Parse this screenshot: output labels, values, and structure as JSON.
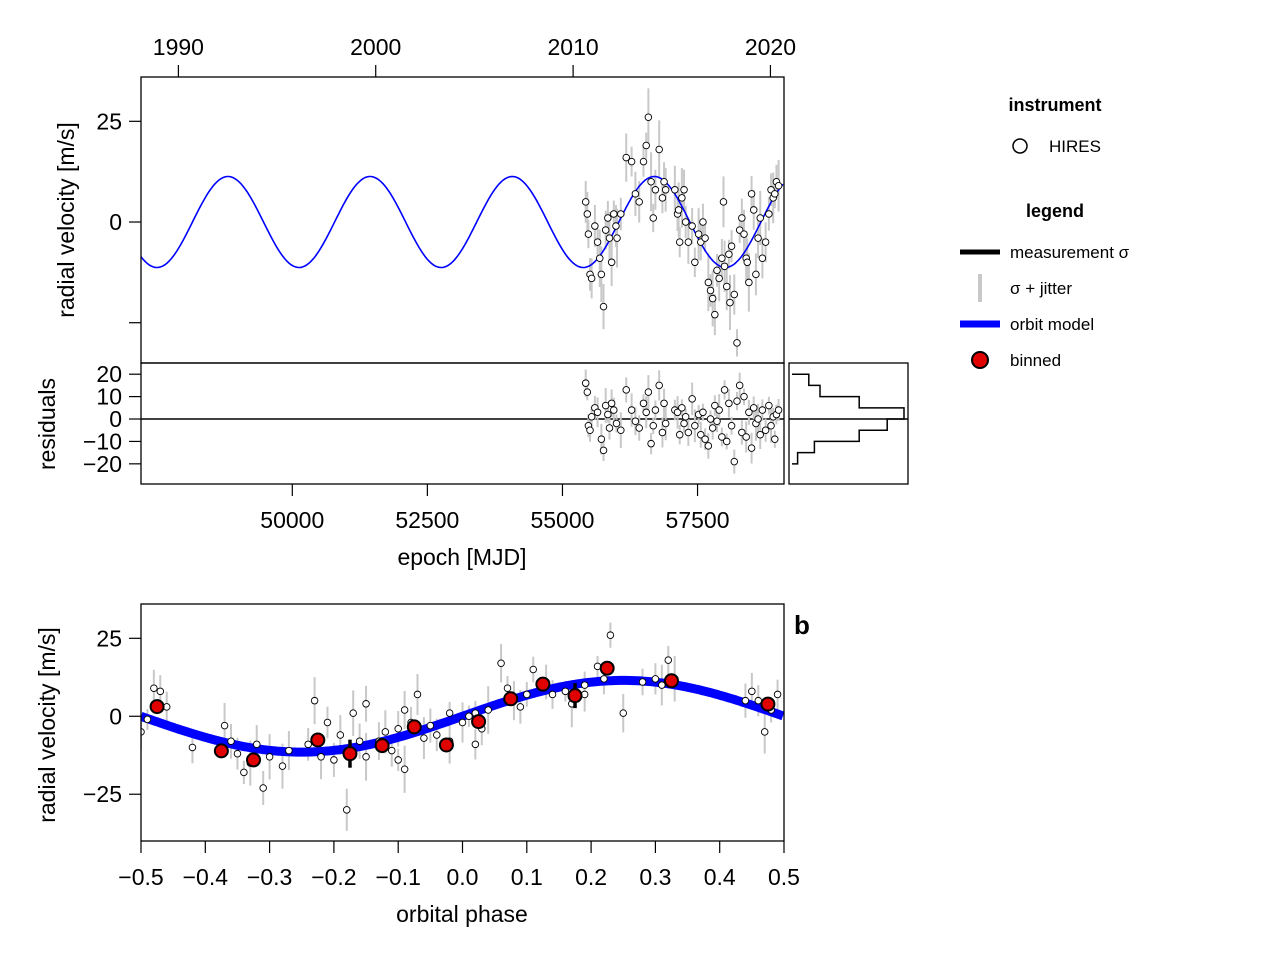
{
  "chart_data": [
    {
      "type": "scatter",
      "name": "rv-vs-epoch",
      "xlabel": "epoch [MJD]",
      "ylabel": "radial velocity [m/s]",
      "xlim": [
        47200,
        59100
      ],
      "ylim": [
        -35,
        36
      ],
      "x_ticks": [
        50000,
        52500,
        55000,
        57500
      ],
      "x_tick_labels": [
        "50000",
        "52500",
        "55000",
        "57500"
      ],
      "y_ticks": [
        25,
        0,
        -25
      ],
      "y_tick_labels": [
        "25",
        "0",
        ""
      ],
      "top_axis": {
        "ticks_mjd": [
          47892,
          51544,
          55197,
          58849
        ],
        "labels": [
          "1990",
          "2000",
          "2010",
          "2020"
        ]
      },
      "model": {
        "amplitude": 11.3,
        "period_days": 2630,
        "peak_mjd": 56700,
        "color": "#0000ff"
      },
      "series": [
        {
          "name": "HIRES",
          "points": [
            [
              55430,
              5
            ],
            [
              55460,
              2
            ],
            [
              55480,
              -3
            ],
            [
              55510,
              -13
            ],
            [
              55540,
              -14
            ],
            [
              55600,
              -1
            ],
            [
              55650,
              -5
            ],
            [
              55720,
              -13
            ],
            [
              55760,
              -21
            ],
            [
              55800,
              -2
            ],
            [
              55840,
              1
            ],
            [
              55870,
              -4
            ],
            [
              55910,
              -10
            ],
            [
              55950,
              2
            ],
            [
              55990,
              -1
            ],
            [
              56080,
              2
            ],
            [
              56180,
              16
            ],
            [
              56280,
              15
            ],
            [
              56350,
              7
            ],
            [
              56420,
              5
            ],
            [
              56500,
              15
            ],
            [
              56550,
              19
            ],
            [
              56590,
              26
            ],
            [
              56640,
              10
            ],
            [
              56680,
              1
            ],
            [
              56720,
              8
            ],
            [
              56790,
              18
            ],
            [
              56850,
              6
            ],
            [
              56880,
              10
            ],
            [
              56910,
              8
            ],
            [
              57080,
              8
            ],
            [
              57130,
              2
            ],
            [
              57170,
              -5
            ],
            [
              57210,
              6
            ],
            [
              57250,
              8
            ],
            [
              57280,
              0
            ],
            [
              57330,
              -5
            ],
            [
              57400,
              -1
            ],
            [
              57450,
              -10
            ],
            [
              57520,
              -3
            ],
            [
              57560,
              -5
            ],
            [
              57600,
              0
            ],
            [
              57640,
              -4
            ],
            [
              57700,
              -15
            ],
            [
              57740,
              -17
            ],
            [
              57780,
              -19
            ],
            [
              57820,
              -23
            ],
            [
              57860,
              -12
            ],
            [
              57900,
              -14
            ],
            [
              57950,
              -9
            ],
            [
              58000,
              -11
            ],
            [
              58040,
              -16
            ],
            [
              58080,
              -8
            ],
            [
              58130,
              -6
            ],
            [
              58180,
              -18
            ],
            [
              58230,
              -30
            ],
            [
              58280,
              -2
            ],
            [
              58320,
              1
            ],
            [
              58360,
              -3
            ],
            [
              58400,
              -9
            ],
            [
              58450,
              -15
            ],
            [
              58500,
              7
            ],
            [
              58540,
              3
            ],
            [
              58580,
              -13
            ],
            [
              58620,
              -4
            ],
            [
              58660,
              1
            ],
            [
              58700,
              -9
            ],
            [
              58760,
              -5
            ],
            [
              58820,
              2
            ],
            [
              58860,
              8
            ],
            [
              58900,
              6
            ],
            [
              58930,
              7
            ],
            [
              58960,
              10
            ],
            [
              59000,
              9
            ],
            [
              57150,
              3
            ],
            [
              56010,
              -4
            ],
            [
              55690,
              -9
            ],
            [
              58100,
              -20
            ],
            [
              57980,
              5
            ],
            [
              58420,
              -10
            ]
          ]
        }
      ]
    },
    {
      "type": "scatter",
      "name": "residuals",
      "ylabel": "residuals",
      "xlim": [
        47200,
        59100
      ],
      "ylim": [
        -29,
        25
      ],
      "y_ticks": [
        20,
        10,
        0,
        -10,
        -20
      ],
      "y_tick_labels": [
        "20",
        "10",
        "0",
        "−10",
        "−20"
      ],
      "points": [
        [
          55430,
          16
        ],
        [
          55460,
          12
        ],
        [
          55480,
          -3
        ],
        [
          55510,
          -5
        ],
        [
          55540,
          1
        ],
        [
          55600,
          5
        ],
        [
          55650,
          3
        ],
        [
          55720,
          -9
        ],
        [
          55760,
          -14
        ],
        [
          55800,
          6
        ],
        [
          55840,
          2
        ],
        [
          55870,
          -4
        ],
        [
          55910,
          7
        ],
        [
          55950,
          4
        ],
        [
          56000,
          -2
        ],
        [
          56080,
          -5
        ],
        [
          56180,
          13
        ],
        [
          56280,
          4
        ],
        [
          56350,
          -1
        ],
        [
          56420,
          -4
        ],
        [
          56500,
          7
        ],
        [
          56550,
          3
        ],
        [
          56590,
          12
        ],
        [
          56640,
          -11
        ],
        [
          56680,
          -3
        ],
        [
          56720,
          4
        ],
        [
          56790,
          15
        ],
        [
          56850,
          -6
        ],
        [
          56880,
          7
        ],
        [
          56910,
          -2
        ],
        [
          57080,
          4
        ],
        [
          57130,
          3
        ],
        [
          57170,
          -7
        ],
        [
          57210,
          5
        ],
        [
          57250,
          -2
        ],
        [
          57280,
          1
        ],
        [
          57330,
          -6
        ],
        [
          57400,
          9
        ],
        [
          57450,
          -3
        ],
        [
          57520,
          2
        ],
        [
          57560,
          -7
        ],
        [
          57600,
          3
        ],
        [
          57640,
          -9
        ],
        [
          57700,
          -12
        ],
        [
          57740,
          0
        ],
        [
          57780,
          -4
        ],
        [
          57820,
          6
        ],
        [
          57860,
          -1
        ],
        [
          57900,
          4
        ],
        [
          57950,
          -8
        ],
        [
          58000,
          13
        ],
        [
          58040,
          -10
        ],
        [
          58080,
          7
        ],
        [
          58130,
          -3
        ],
        [
          58180,
          -19
        ],
        [
          58230,
          8
        ],
        [
          58280,
          15
        ],
        [
          58320,
          -6
        ],
        [
          58360,
          10
        ],
        [
          58400,
          -8
        ],
        [
          58450,
          3
        ],
        [
          58500,
          -13
        ],
        [
          58540,
          5
        ],
        [
          58580,
          -2
        ],
        [
          58620,
          0
        ],
        [
          58660,
          -7
        ],
        [
          58700,
          4
        ],
        [
          58760,
          -5
        ],
        [
          58820,
          6
        ],
        [
          58860,
          -3
        ],
        [
          58900,
          1
        ],
        [
          58930,
          -9
        ],
        [
          58960,
          2
        ],
        [
          59000,
          4
        ]
      ]
    },
    {
      "type": "scatter",
      "name": "rv-vs-phase",
      "panel_label": "b",
      "xlabel": "orbital phase",
      "ylabel": "radial velocity [m/s]",
      "xlim": [
        -0.5,
        0.5
      ],
      "ylim": [
        -40,
        36
      ],
      "x_ticks": [
        -0.5,
        -0.4,
        -0.3,
        -0.2,
        -0.1,
        0.0,
        0.1,
        0.2,
        0.3,
        0.4,
        0.5
      ],
      "x_tick_labels": [
        "−0.5",
        "−0.4",
        "−0.3",
        "−0.2",
        "−0.1",
        "0.0",
        "0.1",
        "0.2",
        "0.3",
        "0.4",
        "0.5"
      ],
      "y_ticks": [
        25,
        0,
        -25
      ],
      "y_tick_labels": [
        "25",
        "0",
        "−25"
      ],
      "model": {
        "amplitude": 11.5,
        "peak_phase": 0.25,
        "color": "#0000ff"
      },
      "points": [
        [
          -0.49,
          -1
        ],
        [
          -0.48,
          9
        ],
        [
          -0.47,
          8
        ],
        [
          -0.46,
          3
        ],
        [
          -0.5,
          -5
        ],
        [
          -0.37,
          -3
        ],
        [
          -0.36,
          -8
        ],
        [
          -0.35,
          -12
        ],
        [
          -0.34,
          -18
        ],
        [
          -0.33,
          -15
        ],
        [
          -0.32,
          -9
        ],
        [
          -0.31,
          -23
        ],
        [
          -0.3,
          -13
        ],
        [
          -0.27,
          -11
        ],
        [
          -0.24,
          -9
        ],
        [
          -0.23,
          5
        ],
        [
          -0.22,
          -13
        ],
        [
          -0.21,
          -2
        ],
        [
          -0.2,
          -14
        ],
        [
          -0.19,
          -6
        ],
        [
          -0.18,
          -30
        ],
        [
          -0.17,
          1
        ],
        [
          -0.16,
          -8
        ],
        [
          -0.15,
          -13
        ],
        [
          -0.13,
          -8
        ],
        [
          -0.12,
          -5
        ],
        [
          -0.11,
          -11
        ],
        [
          -0.1,
          -14
        ],
        [
          -0.09,
          -17
        ],
        [
          -0.1,
          -4
        ],
        [
          -0.09,
          2
        ],
        [
          -0.08,
          -2
        ],
        [
          -0.07,
          7
        ],
        [
          -0.06,
          -7
        ],
        [
          -0.05,
          -3
        ],
        [
          -0.04,
          -6
        ],
        [
          -0.02,
          -8
        ],
        [
          0.0,
          -2
        ],
        [
          0.01,
          0
        ],
        [
          0.02,
          -9
        ],
        [
          0.03,
          -4
        ],
        [
          0.04,
          2
        ],
        [
          0.06,
          17
        ],
        [
          0.07,
          9
        ],
        [
          0.08,
          5
        ],
        [
          0.1,
          7
        ],
        [
          0.11,
          15
        ],
        [
          0.13,
          11
        ],
        [
          0.14,
          7
        ],
        [
          0.16,
          8
        ],
        [
          0.17,
          4
        ],
        [
          0.19,
          7
        ],
        [
          0.21,
          16
        ],
        [
          0.22,
          12
        ],
        [
          0.23,
          26
        ],
        [
          0.25,
          1
        ],
        [
          0.28,
          11
        ],
        [
          0.31,
          10
        ],
        [
          0.32,
          18
        ],
        [
          0.33,
          12
        ],
        [
          0.45,
          8
        ],
        [
          0.46,
          5
        ],
        [
          0.47,
          -5
        ],
        [
          0.48,
          2
        ],
        [
          0.49,
          7
        ],
        [
          -0.42,
          -10
        ],
        [
          -0.28,
          -16
        ],
        [
          -0.15,
          4
        ],
        [
          -0.02,
          1
        ],
        [
          0.02,
          1
        ],
        [
          0.09,
          3
        ],
        [
          0.19,
          10
        ],
        [
          0.3,
          12
        ],
        [
          0.44,
          5
        ]
      ],
      "binned": [
        [
          -0.475,
          3.1,
          1.8
        ],
        [
          -0.375,
          -11.1,
          2.0
        ],
        [
          -0.325,
          -14.0,
          2.2
        ],
        [
          -0.225,
          -7.6,
          1.8
        ],
        [
          -0.175,
          -12.0,
          4.5
        ],
        [
          -0.125,
          -9.4,
          2.4
        ],
        [
          -0.075,
          -3.4,
          2.3
        ],
        [
          -0.025,
          -9.2,
          2.0
        ],
        [
          0.025,
          -1.7,
          1.5
        ],
        [
          0.075,
          5.6,
          1.5
        ],
        [
          0.125,
          10.3,
          1.8
        ],
        [
          0.175,
          6.6,
          4.0
        ],
        [
          0.225,
          15.4,
          2.1
        ],
        [
          0.325,
          11.4,
          2.2
        ],
        [
          0.475,
          3.9,
          1.8
        ]
      ]
    }
  ],
  "legend": {
    "instrument_title": "instrument",
    "instrument_entries": [
      {
        "label": "HIRES",
        "marker": "open-circle"
      }
    ],
    "legend_title": "legend",
    "legend_entries": [
      {
        "label": "measurement σ",
        "style": "thick-black-line"
      },
      {
        "label": "σ + jitter",
        "style": "thin-grey-line"
      },
      {
        "label": "orbit model",
        "style": "thick-blue-line"
      },
      {
        "label": "binned",
        "style": "red-circle"
      }
    ],
    "colors": {
      "model": "#0000ff",
      "binned": "#e00000",
      "errorbar": "#c8c8c8"
    }
  }
}
